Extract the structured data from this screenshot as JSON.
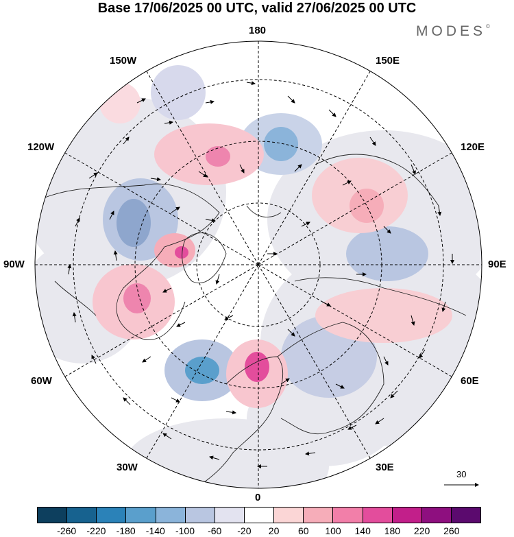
{
  "title": "Base 17/06/2025 00 UTC, valid 27/06/2025 00 UTC",
  "brand": "MODES",
  "brand_mark": "©",
  "lon_labels": {
    "top": "180",
    "bottom": "0",
    "left": "90W",
    "right": "90E",
    "nw_upper": "150W",
    "nw_lower": "120W",
    "ne_upper": "150E",
    "ne_lower": "120E",
    "sw_upper": "60W",
    "sw_lower": "30W",
    "se_upper": "60E",
    "se_lower": "30E"
  },
  "vector_scale": "30",
  "colorbar": {
    "colors": [
      "#0d3f5e",
      "#17628f",
      "#2b82b8",
      "#5a9fcc",
      "#8bb4da",
      "#b9c6e1",
      "#e3e3f0",
      "#ffffff",
      "#fbd6d6",
      "#f6adb9",
      "#f27fa9",
      "#e34d9c",
      "#c21f8a",
      "#8e0f7f",
      "#5b0a6e"
    ],
    "ticks": [
      "-260",
      "-220",
      "-180",
      "-140",
      "-100",
      "-60",
      "-20",
      "20",
      "60",
      "100",
      "140",
      "180",
      "220",
      "260"
    ]
  },
  "anomaly_colors": {
    "negative": "#8bb4da",
    "negative_strong": "#2b82b8",
    "positive": "#f6adb9",
    "positive_strong": "#e34d9c",
    "land": "#e6e6e6"
  }
}
